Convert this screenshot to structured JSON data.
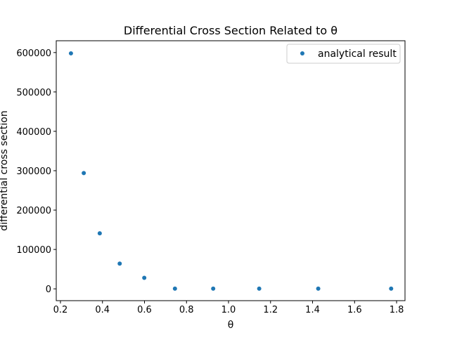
{
  "chart_data": {
    "type": "scatter",
    "title": "Differential Cross Section Related to θ",
    "xlabel": "θ",
    "ylabel": "differential cross section",
    "xlim": [
      0.18,
      1.84
    ],
    "ylim": [
      -30000,
      630000
    ],
    "xticks": [
      0.2,
      0.4,
      0.6,
      0.8,
      1.0,
      1.2,
      1.4,
      1.6,
      1.8
    ],
    "xtick_labels": [
      "0.2",
      "0.4",
      "0.6",
      "0.8",
      "1.0",
      "1.2",
      "1.4",
      "1.6",
      "1.8"
    ],
    "yticks": [
      0,
      100000,
      200000,
      300000,
      400000,
      500000,
      600000
    ],
    "ytick_labels": [
      "0",
      "100000",
      "200000",
      "300000",
      "400000",
      "500000",
      "600000"
    ],
    "grid": false,
    "legend_position": "top-right",
    "series": [
      {
        "name": "analytical result",
        "color": "#1f77b4",
        "marker": "dot",
        "x": [
          0.25,
          0.311,
          0.387,
          0.482,
          0.599,
          0.745,
          0.927,
          1.146,
          1.427,
          1.774
        ],
        "y": [
          598000,
          294000,
          141000,
          64000,
          28000,
          500,
          500,
          500,
          500,
          500
        ]
      }
    ]
  }
}
